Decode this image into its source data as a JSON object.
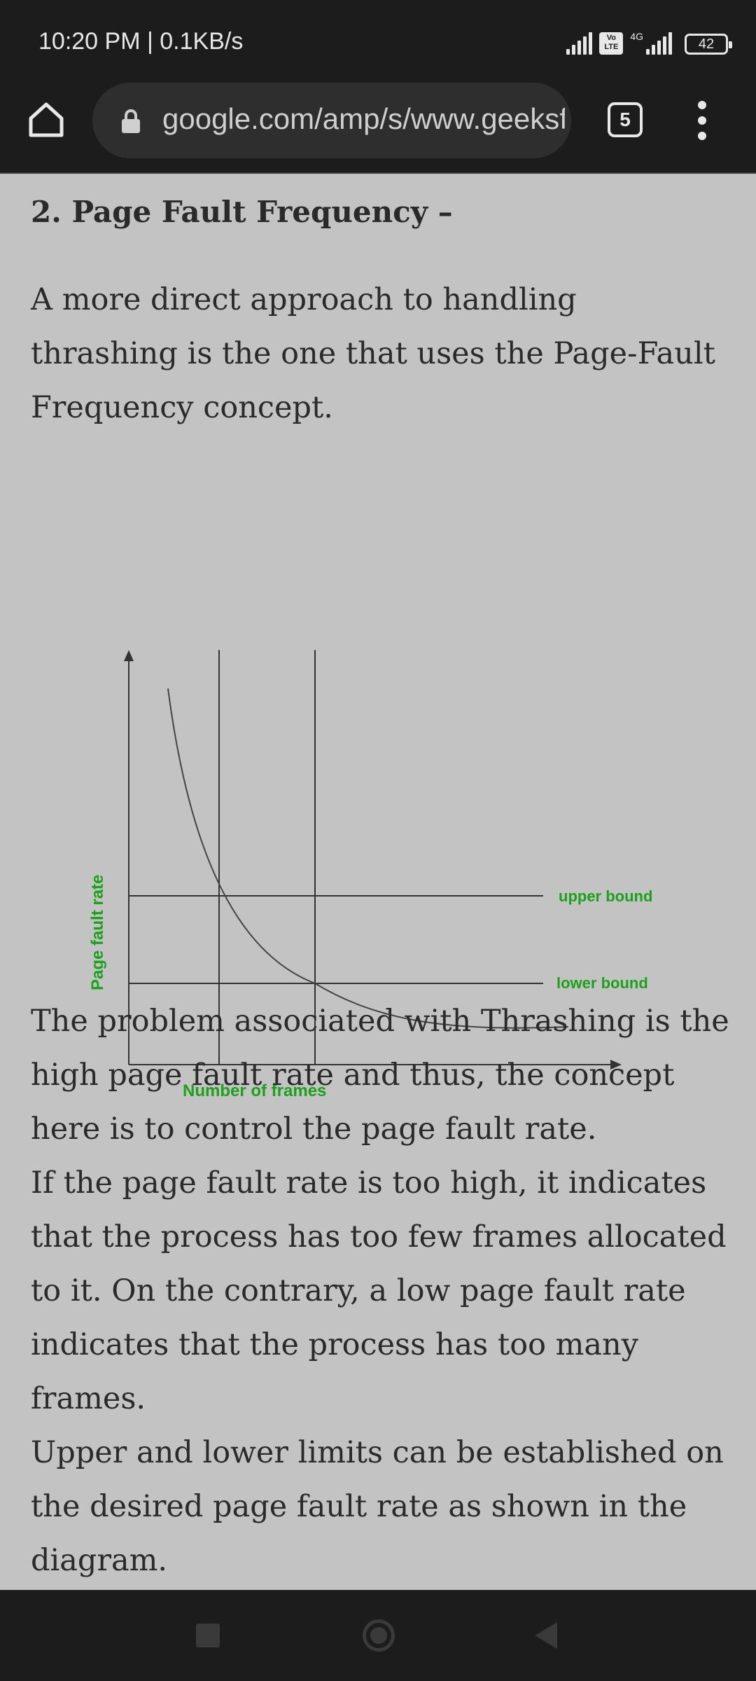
{
  "status_bar": {
    "time": "10:20 PM | 0.1KB/s",
    "volte": "Vo LTE",
    "network": "4G",
    "battery": "42"
  },
  "browser": {
    "url": "google.com/amp/s/www.geeksforgeeks.org",
    "tab_count": "5",
    "icons": [
      "home-icon",
      "lock-icon",
      "tabs-icon",
      "more-vert-icon"
    ]
  },
  "article": {
    "heading": "2. Page Fault Frequency –",
    "intro": "A more direct approach to handling thrashing is the one that uses the Page-Fault Frequency concept.",
    "paragraphs": [
      "The problem associated with Thrashing is the high page fault rate and thus, the concept here is to control the page fault rate.",
      "If the page fault rate is too high, it indicates that the process has too few frames allocated to it. On the contrary, a low page fault rate indicates that the process has too many frames.",
      "Upper and lower limits can be established on the desired page fault rate as shown in the diagram."
    ]
  },
  "diagram": {
    "y_axis_label": "Page fault rate",
    "x_axis_label": "Number of frames",
    "upper_label": "upper bound",
    "lower_label": "lower bound",
    "label_color": "#1aa31a"
  },
  "colors": {
    "content_bg": "#c3c3c3",
    "text": "#2a2a2a",
    "bar_bg": "#1c1c1c"
  },
  "nav": {
    "icons": [
      "recent-apps-icon",
      "home-nav-icon",
      "back-icon"
    ]
  }
}
